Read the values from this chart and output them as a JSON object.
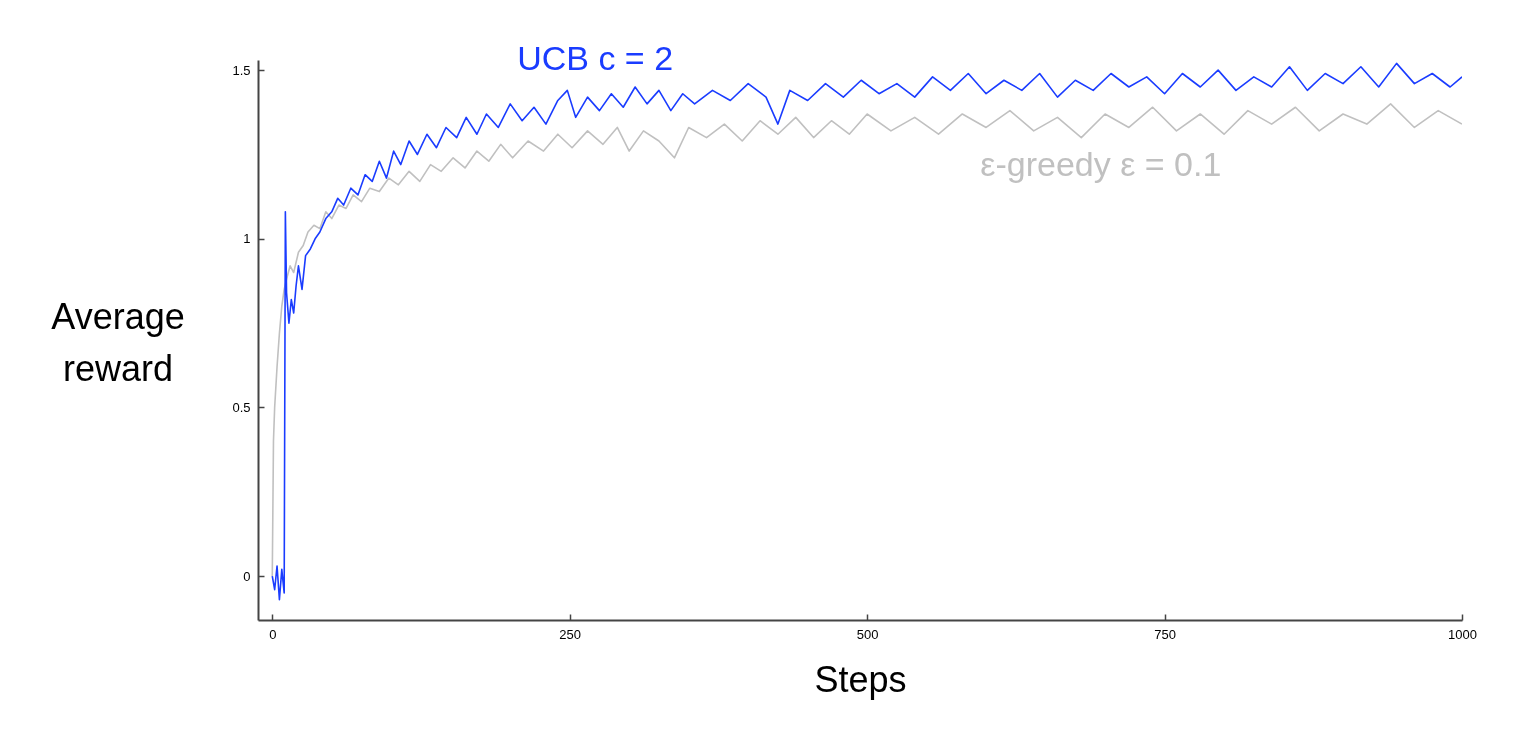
{
  "chart_data": {
    "type": "line",
    "xlabel": "Steps",
    "ylabel": "Average reward",
    "xlim": [
      -12,
      1000
    ],
    "ylim": [
      -0.13,
      1.53
    ],
    "xticks": [
      0,
      250,
      500,
      750,
      1000
    ],
    "yticks": [
      0,
      0.5,
      1,
      1.5
    ],
    "grid": false,
    "marker": "none",
    "line_style": "solid",
    "series": [
      {
        "name": "ε-greedy  ε = 0.1",
        "color": "#c0c0c0",
        "x": [
          0,
          1,
          2,
          4,
          6,
          8,
          10,
          12,
          15,
          18,
          22,
          26,
          30,
          35,
          40,
          45,
          50,
          56,
          62,
          68,
          75,
          82,
          90,
          98,
          106,
          115,
          124,
          133,
          142,
          152,
          162,
          172,
          182,
          192,
          202,
          215,
          228,
          240,
          252,
          265,
          278,
          290,
          300,
          312,
          325,
          338,
          350,
          365,
          380,
          395,
          410,
          425,
          440,
          455,
          470,
          485,
          500,
          520,
          540,
          560,
          580,
          600,
          620,
          640,
          660,
          680,
          700,
          720,
          740,
          760,
          780,
          800,
          820,
          840,
          860,
          880,
          900,
          920,
          940,
          960,
          980,
          1000
        ],
        "values": [
          0.0,
          0.4,
          0.5,
          0.62,
          0.72,
          0.8,
          0.85,
          0.88,
          0.92,
          0.9,
          0.96,
          0.98,
          1.02,
          1.04,
          1.03,
          1.08,
          1.06,
          1.1,
          1.09,
          1.13,
          1.11,
          1.15,
          1.14,
          1.18,
          1.16,
          1.2,
          1.17,
          1.22,
          1.2,
          1.24,
          1.21,
          1.26,
          1.23,
          1.28,
          1.24,
          1.29,
          1.26,
          1.31,
          1.27,
          1.32,
          1.28,
          1.33,
          1.26,
          1.32,
          1.29,
          1.24,
          1.33,
          1.3,
          1.34,
          1.29,
          1.35,
          1.31,
          1.36,
          1.3,
          1.35,
          1.31,
          1.37,
          1.32,
          1.36,
          1.31,
          1.37,
          1.33,
          1.38,
          1.32,
          1.36,
          1.3,
          1.37,
          1.33,
          1.39,
          1.32,
          1.37,
          1.31,
          1.38,
          1.34,
          1.39,
          1.32,
          1.37,
          1.34,
          1.4,
          1.33,
          1.38,
          1.34
        ]
      },
      {
        "name": "UCB  c = 2",
        "color": "#1a3cff",
        "x": [
          0,
          2,
          4,
          6,
          8,
          10,
          11,
          12,
          14,
          16,
          18,
          20,
          22,
          25,
          28,
          32,
          36,
          40,
          45,
          50,
          55,
          60,
          66,
          72,
          78,
          84,
          90,
          96,
          102,
          108,
          115,
          122,
          130,
          138,
          146,
          155,
          163,
          172,
          180,
          190,
          200,
          210,
          220,
          230,
          240,
          248,
          255,
          265,
          275,
          285,
          295,
          305,
          315,
          325,
          335,
          345,
          355,
          370,
          385,
          400,
          415,
          425,
          435,
          450,
          465,
          480,
          495,
          510,
          525,
          540,
          555,
          570,
          585,
          600,
          615,
          630,
          645,
          660,
          675,
          690,
          705,
          720,
          735,
          750,
          765,
          780,
          795,
          810,
          825,
          840,
          855,
          870,
          885,
          900,
          915,
          930,
          945,
          960,
          975,
          990,
          1000
        ],
        "values": [
          0.0,
          -0.04,
          0.03,
          -0.07,
          0.02,
          -0.05,
          1.08,
          0.84,
          0.75,
          0.82,
          0.78,
          0.86,
          0.92,
          0.85,
          0.95,
          0.97,
          1.0,
          1.02,
          1.06,
          1.08,
          1.12,
          1.1,
          1.15,
          1.13,
          1.19,
          1.17,
          1.23,
          1.18,
          1.26,
          1.22,
          1.29,
          1.25,
          1.31,
          1.27,
          1.33,
          1.3,
          1.36,
          1.31,
          1.37,
          1.33,
          1.4,
          1.35,
          1.39,
          1.34,
          1.41,
          1.44,
          1.36,
          1.42,
          1.38,
          1.43,
          1.39,
          1.45,
          1.4,
          1.44,
          1.38,
          1.43,
          1.4,
          1.44,
          1.41,
          1.46,
          1.42,
          1.34,
          1.44,
          1.41,
          1.46,
          1.42,
          1.47,
          1.43,
          1.46,
          1.42,
          1.48,
          1.44,
          1.49,
          1.43,
          1.47,
          1.44,
          1.49,
          1.42,
          1.47,
          1.44,
          1.49,
          1.45,
          1.48,
          1.43,
          1.49,
          1.45,
          1.5,
          1.44,
          1.48,
          1.45,
          1.51,
          1.44,
          1.49,
          1.46,
          1.51,
          1.45,
          1.52,
          1.46,
          1.49,
          1.45,
          1.48
        ]
      }
    ]
  }
}
